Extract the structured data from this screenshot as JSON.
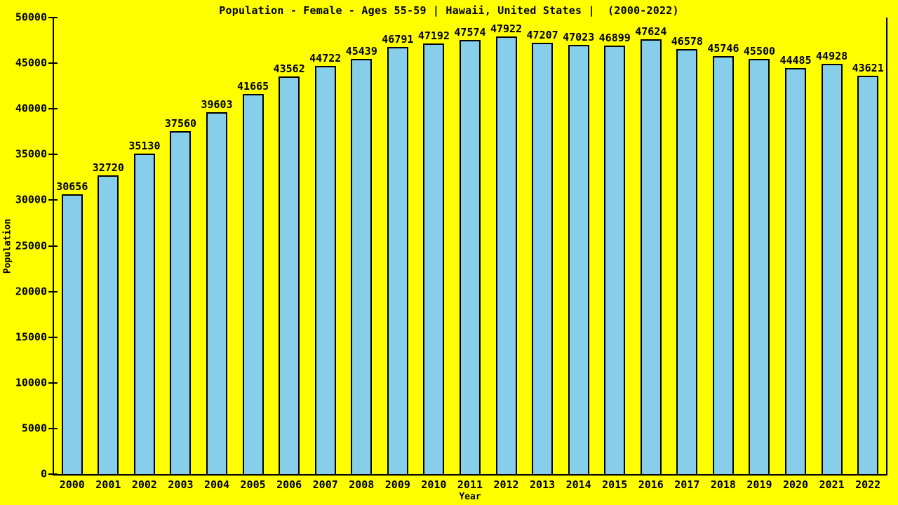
{
  "page": {
    "background_color": "#ffff00",
    "text_color": "#000000"
  },
  "chart_data": {
    "type": "bar",
    "title": "Population - Female - Ages 55-59 | Hawaii, United States |  (2000-2022)",
    "xlabel": "Year",
    "ylabel": "Population",
    "categories": [
      "2000",
      "2001",
      "2002",
      "2003",
      "2004",
      "2005",
      "2006",
      "2007",
      "2008",
      "2009",
      "2010",
      "2011",
      "2012",
      "2013",
      "2014",
      "2015",
      "2016",
      "2017",
      "2018",
      "2019",
      "2020",
      "2021",
      "2022"
    ],
    "values": [
      30656,
      32720,
      35130,
      37560,
      39603,
      41665,
      43562,
      44722,
      45439,
      46791,
      47192,
      47574,
      47922,
      47207,
      47023,
      46899,
      47624,
      46578,
      45746,
      45500,
      44485,
      44928,
      43621
    ],
    "ylim": [
      0,
      50000
    ],
    "yticks": [
      0,
      5000,
      10000,
      15000,
      20000,
      25000,
      30000,
      35000,
      40000,
      45000,
      50000
    ],
    "grid": "off",
    "legend": "none",
    "bar_color": "#87ceeb",
    "bar_edge_color": "#000000",
    "background_color": "#ffff00",
    "text_color": "#000000"
  }
}
